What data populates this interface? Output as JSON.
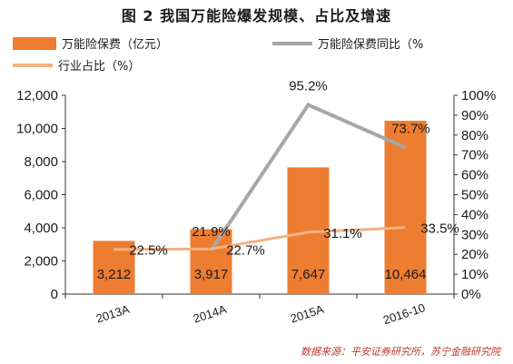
{
  "title": "图 2 我国万能险爆发规模、占比及增速",
  "source": "数据来源：平安证券研究所，苏宁金融研究院",
  "colors": {
    "bar": "#ED7D31",
    "yoy": "#A6A6A6",
    "share": "#F4B183",
    "text": "#1a1a1a",
    "source": "#c0392b"
  },
  "legend": [
    {
      "key": "bar",
      "label": "万能险保费（亿元）"
    },
    {
      "key": "yoy",
      "label": "万能险保费同比（%"
    },
    {
      "key": "share",
      "label": "行业占比（%）"
    }
  ],
  "chart_data": {
    "type": "bar",
    "categories": [
      "2013A",
      "2014A",
      "2015A",
      "2016-10"
    ],
    "series": [
      {
        "name": "万能险保费（亿元）",
        "type": "bar",
        "axis": "left",
        "values": [
          3212,
          3917,
          7647,
          10464
        ],
        "labels": [
          "3,212",
          "3,917",
          "7,647",
          "10,464"
        ]
      },
      {
        "name": "万能险保费同比（%",
        "type": "line",
        "axis": "right",
        "values": [
          null,
          21.9,
          95.2,
          73.7
        ],
        "labels": [
          null,
          "21.9%",
          "95.2%",
          "73.7%"
        ]
      },
      {
        "name": "行业占比（%）",
        "type": "line",
        "axis": "right",
        "values": [
          22.5,
          22.7,
          31.1,
          33.5
        ],
        "labels": [
          "22.5%",
          "22.7%",
          "31.1%",
          "33.5%"
        ]
      }
    ],
    "y_left": {
      "ylim": [
        0,
        12000
      ],
      "ticks": [
        0,
        2000,
        4000,
        6000,
        8000,
        10000,
        12000
      ],
      "tick_labels": [
        "0",
        "2,000",
        "4,000",
        "6,000",
        "8,000",
        "10,000",
        "12,000"
      ]
    },
    "y_right": {
      "ylim": [
        0,
        100
      ],
      "ticks": [
        0,
        10,
        20,
        30,
        40,
        50,
        60,
        70,
        80,
        90,
        100
      ],
      "tick_labels": [
        "0%",
        "10%",
        "20%",
        "30%",
        "40%",
        "50%",
        "60%",
        "70%",
        "80%",
        "90%",
        "100%"
      ]
    },
    "grid": false,
    "legend_position": "top"
  }
}
